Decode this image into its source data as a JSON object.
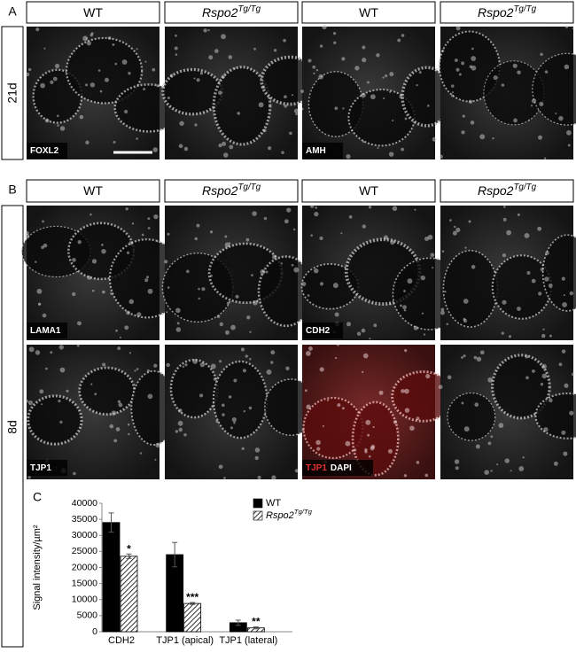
{
  "figure": {
    "panels": [
      {
        "letter": "A",
        "row_label": "21d",
        "headers": [
          {
            "text": "WT"
          },
          {
            "text": "Rspo2",
            "sup": "Tg/Tg",
            "italic": true
          },
          {
            "text": "WT"
          },
          {
            "text": "Rspo2",
            "sup": "Tg/Tg",
            "italic": true
          }
        ],
        "images": [
          {
            "label": "FOXL2"
          },
          {},
          {
            "label": "AMH"
          },
          {}
        ]
      },
      {
        "letter": "B",
        "row_label": "8d",
        "headers": [
          {
            "text": "WT"
          },
          {
            "text": "Rspo2",
            "sup": "Tg/Tg",
            "italic": true
          },
          {
            "text": "WT"
          },
          {
            "text": "Rspo2",
            "sup": "Tg/Tg",
            "italic": true
          }
        ],
        "images": [
          {
            "label": "LAMA1"
          },
          {},
          {
            "label": "CDH2"
          },
          {},
          {
            "label": "TJP1"
          },
          {},
          {
            "label": "TJP1",
            "label_color": "#e8302c",
            "label2": "DAPI"
          },
          {}
        ]
      },
      {
        "letter": "C"
      }
    ]
  },
  "chart_data": {
    "type": "bar",
    "y_label": "Signal intensity/µm²",
    "categories": [
      "CDH2",
      "TJP1 (apical)",
      "TJP1 (lateral)"
    ],
    "series": [
      {
        "name": "WT",
        "color": "#000000",
        "values": [
          34000,
          24000,
          2800
        ],
        "errors": [
          3000,
          3800,
          800
        ]
      },
      {
        "name": "Rspo2",
        "name_sup": "Tg/Tg",
        "italic": true,
        "color": "#000000",
        "pattern": "hatch",
        "values": [
          23500,
          8800,
          1200
        ],
        "errors": [
          700,
          300,
          300
        ],
        "significance": [
          "*",
          "***",
          "**"
        ]
      }
    ],
    "ylim": [
      0,
      40000
    ],
    "yticks": [
      0,
      5000,
      10000,
      15000,
      20000,
      25000,
      30000,
      35000,
      40000
    ],
    "grid": false,
    "legend": "top-right"
  }
}
